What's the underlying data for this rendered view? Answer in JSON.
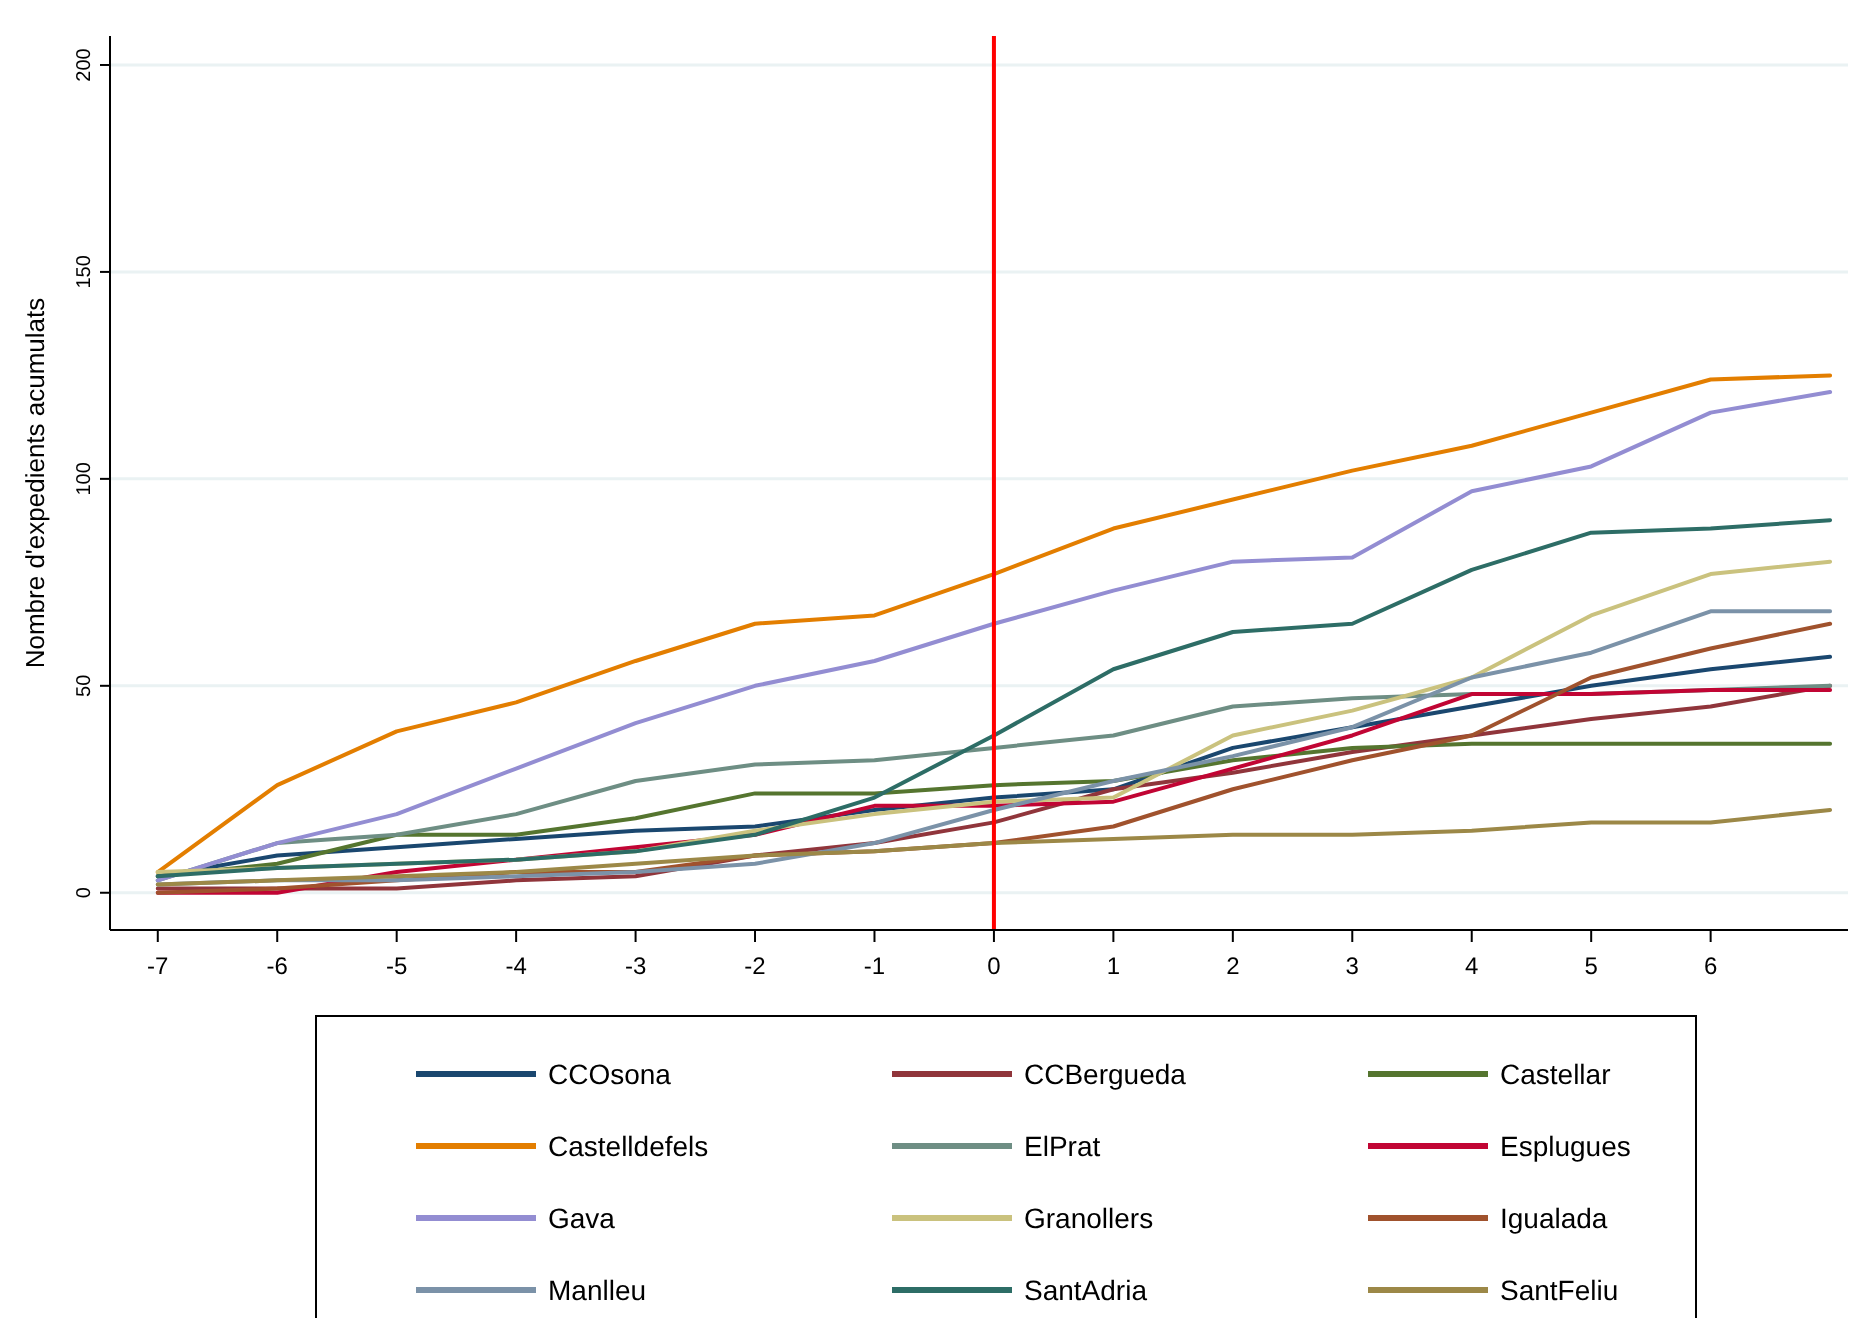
{
  "chart_data": {
    "type": "line",
    "ylabel": "Nombre d'expedients acumulats",
    "x": [
      -7,
      -6,
      -5,
      -4,
      -3,
      -2,
      -1,
      0,
      1,
      2,
      3,
      4,
      5,
      6,
      7
    ],
    "xlim": [
      -7.4,
      7.15
    ],
    "xticks": [
      -7,
      -6,
      -5,
      -4,
      -3,
      -2,
      -1,
      0,
      1,
      2,
      3,
      4,
      5,
      6
    ],
    "ylim": [
      -9,
      207
    ],
    "yticks": [
      0,
      50,
      100,
      150,
      200
    ],
    "grid": "y",
    "legend": "bottom",
    "line_style": "solid",
    "ref_lines": [
      {
        "axis": "x",
        "value": 0,
        "color": "#ff0000"
      }
    ],
    "series": [
      {
        "name": "CCOsona",
        "color": "#1a476f",
        "values": [
          4,
          9,
          11,
          13,
          15,
          16,
          20,
          23,
          25,
          35,
          40,
          45,
          50,
          54,
          57
        ]
      },
      {
        "name": "CCBergueda",
        "color": "#90353b",
        "values": [
          1,
          1,
          1,
          3,
          4,
          9,
          12,
          17,
          25,
          29,
          34,
          38,
          42,
          45,
          50
        ]
      },
      {
        "name": "Castellar",
        "color": "#55752f",
        "values": [
          4,
          7,
          14,
          14,
          18,
          24,
          24,
          26,
          27,
          32,
          35,
          36,
          36,
          36,
          36
        ]
      },
      {
        "name": "Castelldefels",
        "color": "#e37e00",
        "values": [
          5,
          26,
          39,
          46,
          56,
          65,
          67,
          77,
          88,
          95,
          102,
          108,
          116,
          124,
          125
        ]
      },
      {
        "name": "ElPrat",
        "color": "#6e8e84",
        "values": [
          3,
          12,
          14,
          19,
          27,
          31,
          32,
          35,
          38,
          45,
          47,
          48,
          48,
          49,
          50
        ]
      },
      {
        "name": "Esplugues",
        "color": "#c10534",
        "values": [
          0,
          0,
          5,
          8,
          11,
          14,
          21,
          21,
          22,
          30,
          38,
          48,
          48,
          49,
          49
        ]
      },
      {
        "name": "Gava",
        "color": "#938dd2",
        "values": [
          3,
          12,
          19,
          30,
          41,
          50,
          56,
          65,
          73,
          80,
          81,
          97,
          103,
          116,
          121
        ]
      },
      {
        "name": "Granollers",
        "color": "#cac27e",
        "values": [
          5,
          6,
          7,
          8,
          10,
          15,
          19,
          22,
          23,
          38,
          44,
          52,
          67,
          77,
          80
        ]
      },
      {
        "name": "Igualada",
        "color": "#a0522d",
        "values": [
          0,
          1,
          3,
          5,
          5,
          9,
          10,
          12,
          16,
          25,
          32,
          38,
          52,
          59,
          65
        ]
      },
      {
        "name": "Manlleu",
        "color": "#7b92a8",
        "values": [
          2,
          3,
          3,
          4,
          5,
          7,
          12,
          20,
          27,
          33,
          40,
          52,
          58,
          68,
          68
        ]
      },
      {
        "name": "SantAdria",
        "color": "#2d6d66",
        "values": [
          4,
          6,
          7,
          8,
          10,
          14,
          23,
          38,
          54,
          63,
          65,
          78,
          87,
          88,
          90
        ]
      },
      {
        "name": "SantFeliu",
        "color": "#9c8847",
        "values": [
          2,
          3,
          4,
          5,
          7,
          9,
          10,
          12,
          13,
          14,
          14,
          15,
          17,
          17,
          20
        ]
      }
    ]
  }
}
